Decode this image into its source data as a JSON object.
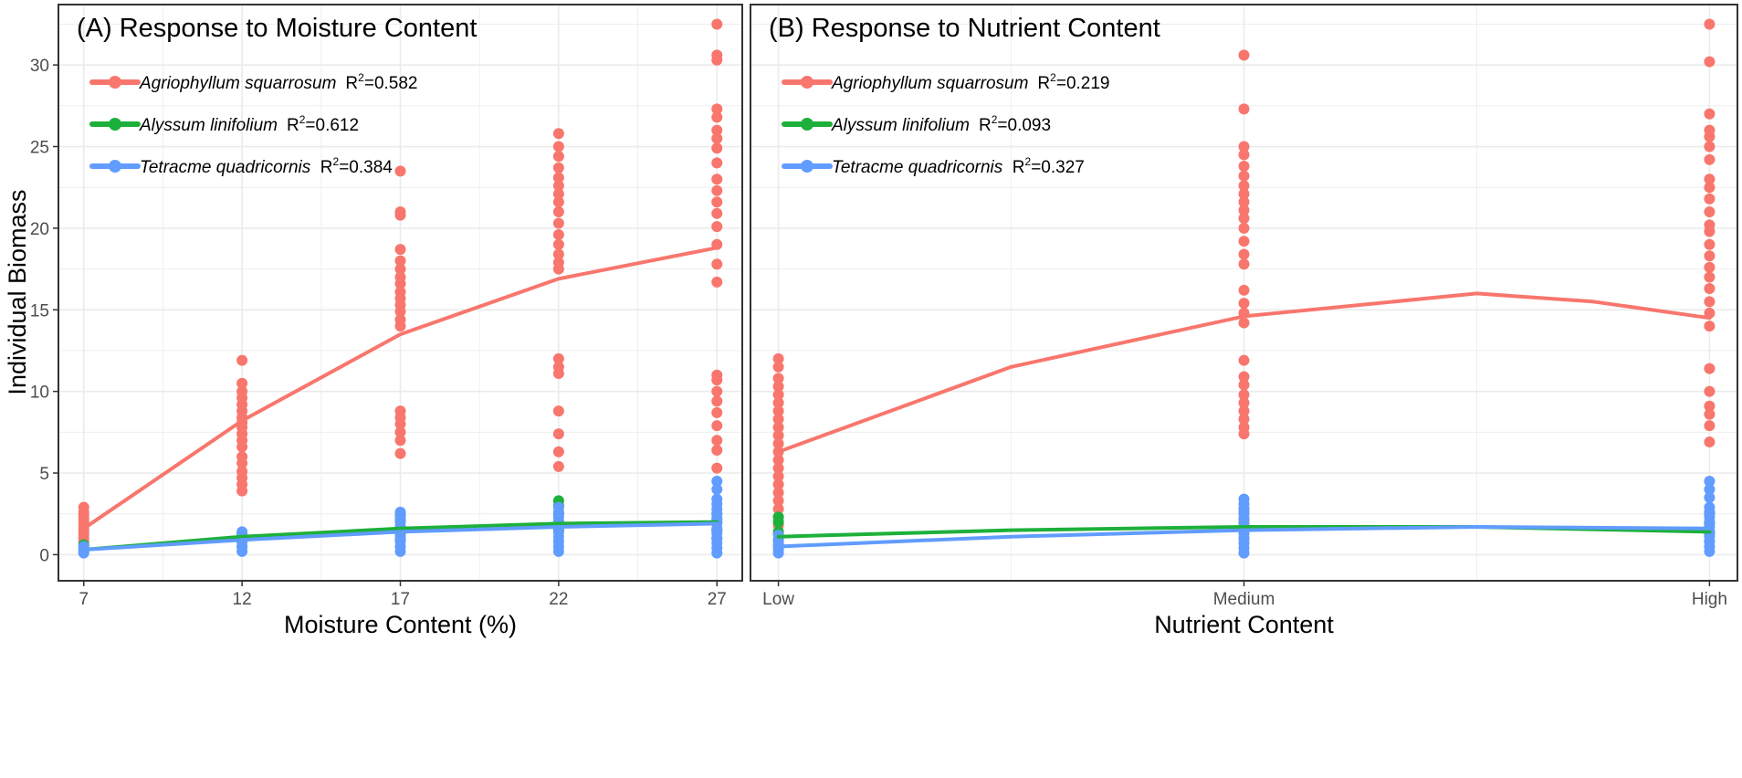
{
  "figure": {
    "ylabel": "Individual Biomass",
    "colors": {
      "Agriophyllum squarrosum": "#F8766D",
      "Alyssum linifolium": "#1DB03A",
      "Tetracme quadricornis": "#619CFF",
      "grid": "#EBEBEB",
      "border": "#333333",
      "tick_text": "#4D4D4D"
    }
  },
  "chart_data": [
    {
      "type": "scatter",
      "panel": "A",
      "title": "(A) Response to Moisture Content",
      "xlabel": "Moisture Content (%)",
      "ylabel": "Individual Biomass",
      "xlim": [
        6.2,
        27.8
      ],
      "ylim": [
        -1.6,
        33.7
      ],
      "x_ticks": [
        7,
        12,
        17,
        22,
        27
      ],
      "x_tick_labels": [
        "7",
        "12",
        "17",
        "22",
        "27"
      ],
      "y_ticks": [
        0,
        5,
        10,
        15,
        20,
        25,
        30
      ],
      "y_tick_labels": [
        "0",
        "5",
        "10",
        "15",
        "20",
        "25",
        "30"
      ],
      "grid": true,
      "legend_position": "top-left",
      "series": [
        {
          "name": "Agriophyllum squarrosum",
          "r2_label": "R",
          "r2_sup": "2",
          "r2_value": "=0.582",
          "fit": [
            [
              7,
              1.6
            ],
            [
              12,
              8.2
            ],
            [
              17,
              13.5
            ],
            [
              22,
              16.9
            ],
            [
              27,
              18.8
            ]
          ],
          "groups": [
            {
              "x": 7,
              "values": [
                0.8,
                1.0,
                1.2,
                1.4,
                1.6,
                1.8,
                2.0,
                2.2,
                2.4,
                2.6,
                2.9
              ]
            },
            {
              "x": 12,
              "values": [
                3.9,
                4.3,
                4.7,
                5.1,
                5.6,
                6.0,
                6.6,
                7.0,
                7.4,
                7.8,
                8.1,
                8.4,
                8.8,
                9.2,
                9.6,
                10.0,
                10.5,
                11.9
              ]
            },
            {
              "x": 17,
              "values": [
                6.2,
                7.0,
                7.5,
                8.0,
                8.4,
                8.8,
                14.0,
                14.4,
                14.9,
                15.3,
                15.7,
                16.1,
                16.6,
                17.0,
                17.5,
                18.0,
                18.7,
                20.8,
                21.0,
                23.5
              ]
            },
            {
              "x": 22,
              "values": [
                1.4,
                2.0,
                5.4,
                6.3,
                7.4,
                8.8,
                11.1,
                11.5,
                12.0,
                17.5,
                17.9,
                18.4,
                19.0,
                19.6,
                20.3,
                21.0,
                21.6,
                22.1,
                22.6,
                23.1,
                23.7,
                24.4,
                25.0,
                25.8
              ]
            },
            {
              "x": 27,
              "values": [
                1.5,
                2.2,
                5.3,
                6.4,
                7.0,
                7.9,
                8.7,
                9.4,
                10.0,
                10.7,
                11.0,
                16.7,
                17.8,
                19.0,
                20.1,
                20.9,
                21.6,
                22.3,
                23.0,
                24.0,
                24.9,
                25.5,
                26.0,
                26.8,
                27.3,
                30.3,
                30.6,
                32.5
              ]
            }
          ]
        },
        {
          "name": "Alyssum linifolium",
          "r2_label": "R",
          "r2_sup": "2",
          "r2_value": "=0.612",
          "fit": [
            [
              7,
              0.3
            ],
            [
              12,
              1.1
            ],
            [
              17,
              1.6
            ],
            [
              22,
              1.9
            ],
            [
              27,
              2.0
            ]
          ],
          "groups": [
            {
              "x": 7,
              "values": [
                0.2,
                0.4,
                0.6
              ]
            },
            {
              "x": 12,
              "values": [
                0.5,
                0.8,
                1.1,
                1.3
              ]
            },
            {
              "x": 17,
              "values": [
                0.9,
                1.3,
                1.7,
                2.1,
                2.4
              ]
            },
            {
              "x": 22,
              "values": [
                1.5,
                2.0,
                2.5,
                3.0,
                3.3
              ]
            },
            {
              "x": 27,
              "values": [
                1.0,
                1.5,
                2.0,
                2.5
              ]
            }
          ]
        },
        {
          "name": "Tetracme quadricornis",
          "r2_label": "R",
          "r2_sup": "2",
          "r2_value": "=0.384",
          "fit": [
            [
              7,
              0.3
            ],
            [
              12,
              0.9
            ],
            [
              17,
              1.4
            ],
            [
              22,
              1.7
            ],
            [
              27,
              1.9
            ]
          ],
          "groups": [
            {
              "x": 7,
              "values": [
                0.1,
                0.3,
                0.5
              ]
            },
            {
              "x": 12,
              "values": [
                0.2,
                0.5,
                0.8,
                1.1,
                1.4
              ]
            },
            {
              "x": 17,
              "values": [
                0.2,
                0.5,
                0.8,
                1.1,
                1.4,
                1.7,
                2.0,
                2.3,
                2.6
              ]
            },
            {
              "x": 22,
              "values": [
                0.2,
                0.5,
                0.8,
                1.1,
                1.4,
                1.7,
                2.0,
                2.3,
                2.6,
                2.9
              ]
            },
            {
              "x": 27,
              "values": [
                0.1,
                0.4,
                0.7,
                1.0,
                1.3,
                1.6,
                1.9,
                2.2,
                2.5,
                2.8,
                3.1,
                3.4,
                4.0,
                4.5
              ]
            }
          ]
        }
      ]
    },
    {
      "type": "scatter",
      "panel": "B",
      "title": "(B) Response to Nutrient Content",
      "xlabel": "Nutrient Content",
      "ylabel": "",
      "xlim": [
        0.94,
        3.06
      ],
      "ylim": [
        -1.6,
        33.7
      ],
      "x_ticks": [
        1,
        2,
        3
      ],
      "x_tick_labels": [
        "Low",
        "Medium",
        "High"
      ],
      "y_ticks": [
        0,
        5,
        10,
        15,
        20,
        25,
        30
      ],
      "y_tick_labels": [],
      "grid": true,
      "legend_position": "top-left",
      "series": [
        {
          "name": "Agriophyllum squarrosum",
          "r2_label": "R",
          "r2_sup": "2",
          "r2_value": "=0.219",
          "fit": [
            [
              1,
              6.3
            ],
            [
              1.5,
              11.5
            ],
            [
              2,
              14.6
            ],
            [
              2.5,
              16.0
            ],
            [
              2.75,
              15.5
            ],
            [
              3,
              14.5
            ]
          ],
          "groups": [
            {
              "x": 1,
              "values": [
                0.8,
                1.3,
                1.8,
                2.3,
                2.8,
                3.3,
                3.8,
                4.3,
                4.8,
                5.3,
                5.8,
                6.3,
                6.8,
                7.3,
                7.8,
                8.3,
                8.8,
                9.3,
                9.8,
                10.3,
                10.8,
                11.5,
                12.0
              ]
            },
            {
              "x": 2,
              "values": [
                1.5,
                2.0,
                2.6,
                7.4,
                7.8,
                8.3,
                8.8,
                9.3,
                9.8,
                10.4,
                10.9,
                11.9,
                14.2,
                14.8,
                15.4,
                16.2,
                17.8,
                18.4,
                19.2,
                20.0,
                20.6,
                21.1,
                21.6,
                22.1,
                22.6,
                23.2,
                23.8,
                24.5,
                25.0,
                27.3,
                30.6
              ]
            },
            {
              "x": 3,
              "values": [
                1.4,
                2.0,
                2.6,
                6.9,
                7.9,
                8.6,
                9.1,
                10.0,
                11.4,
                14.0,
                14.8,
                15.5,
                16.3,
                17.0,
                17.6,
                18.3,
                19.0,
                19.8,
                20.2,
                21.0,
                21.8,
                22.5,
                23.0,
                24.2,
                25.0,
                25.6,
                26.0,
                27.0,
                30.2,
                32.5
              ]
            }
          ]
        },
        {
          "name": "Alyssum linifolium",
          "r2_label": "R",
          "r2_sup": "2",
          "r2_value": "=0.093",
          "fit": [
            [
              1,
              1.1
            ],
            [
              1.5,
              1.5
            ],
            [
              2,
              1.7
            ],
            [
              2.5,
              1.7
            ],
            [
              3,
              1.4
            ]
          ],
          "groups": [
            {
              "x": 1,
              "values": [
                0.5,
                0.9,
                1.4,
                2.0,
                2.3
              ]
            },
            {
              "x": 2,
              "values": [
                1.0,
                1.6,
                2.2,
                2.8
              ]
            },
            {
              "x": 3,
              "values": [
                0.8,
                1.3,
                1.9,
                2.5
              ]
            }
          ]
        },
        {
          "name": "Tetracme quadricornis",
          "r2_label": "R",
          "r2_sup": "2",
          "r2_value": "=0.327",
          "fit": [
            [
              1,
              0.5
            ],
            [
              1.5,
              1.1
            ],
            [
              2,
              1.5
            ],
            [
              2.5,
              1.7
            ],
            [
              3,
              1.6
            ]
          ],
          "groups": [
            {
              "x": 1,
              "values": [
                0.1,
                0.3,
                0.6,
                0.9,
                1.2
              ]
            },
            {
              "x": 2,
              "values": [
                0.1,
                0.4,
                0.7,
                1.0,
                1.3,
                1.6,
                1.9,
                2.2,
                2.5,
                2.8,
                3.1,
                3.4
              ]
            },
            {
              "x": 3,
              "values": [
                0.2,
                0.5,
                0.8,
                1.1,
                1.4,
                1.7,
                2.0,
                2.3,
                2.6,
                2.9,
                3.5,
                4.0,
                4.5
              ]
            }
          ]
        }
      ]
    }
  ]
}
